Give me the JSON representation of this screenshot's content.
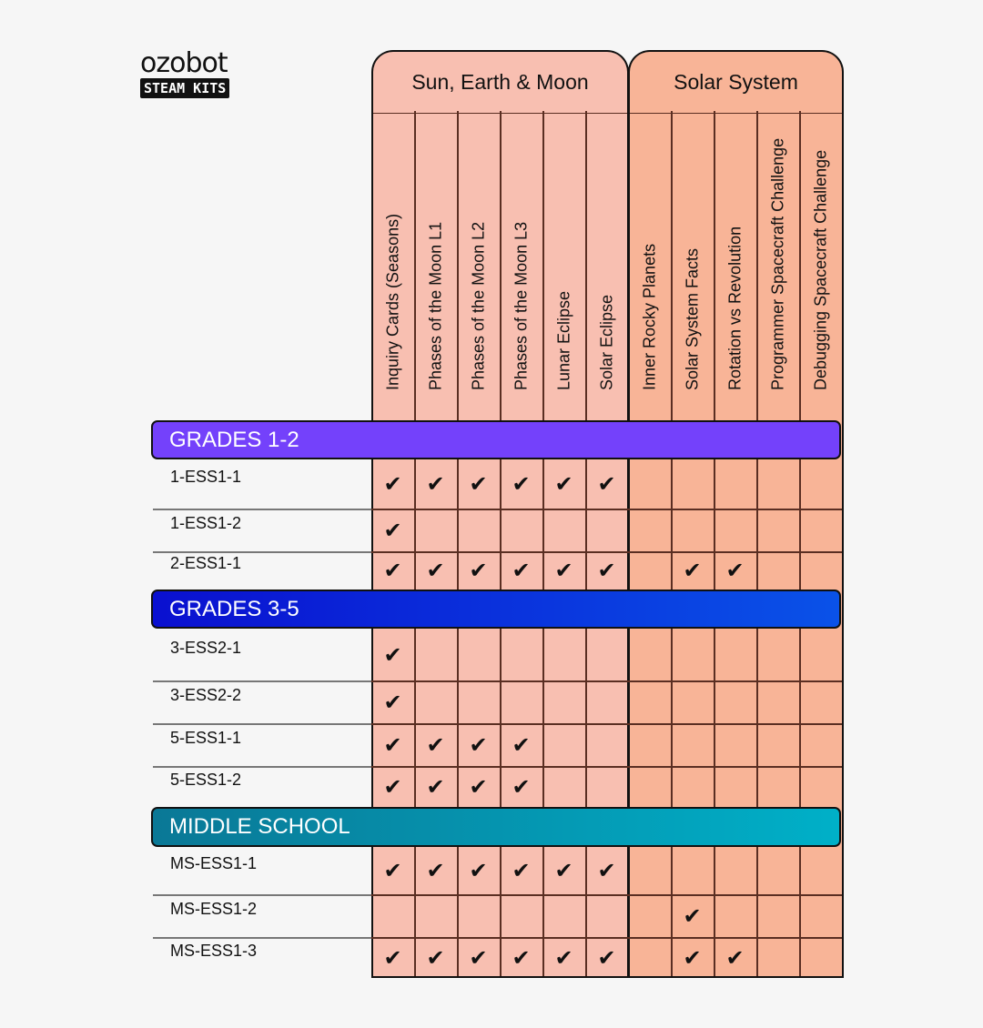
{
  "logo": {
    "wordmark": "ozobot",
    "badge": "STEAM KITS"
  },
  "colors": {
    "sun_earth_moon": "#f8bfb1",
    "solar_system": "#f8b497",
    "grades_1_2": "#7441fb",
    "grades_3_5": [
      "#0a10d0",
      "#0a52e8"
    ],
    "middle_school": [
      "#0a7896",
      "#00b0c8"
    ]
  },
  "groups": [
    {
      "title": "Sun, Earth & Moon",
      "columns": [
        "Inquiry Cards (Seasons)",
        "Phases of the Moon L1",
        "Phases of the Moon L2",
        "Phases of the Moon L3",
        "Lunar Eclipse",
        "Solar Eclipse"
      ]
    },
    {
      "title": "Solar System",
      "columns": [
        "Inner Rocky Planets",
        "Solar System Facts",
        "Rotation vs Revolution",
        "Programmer Spacecraft Challenge",
        "Debugging Spacecraft Challenge"
      ]
    }
  ],
  "check_icon": "checkmark",
  "sections": [
    {
      "title": "GRADES 1-2",
      "rows": [
        {
          "label": "1-ESS1-1",
          "checks": [
            1,
            1,
            1,
            1,
            1,
            1,
            0,
            0,
            0,
            0,
            0
          ]
        },
        {
          "label": "1-ESS1-2",
          "checks": [
            1,
            0,
            0,
            0,
            0,
            0,
            0,
            0,
            0,
            0,
            0
          ]
        },
        {
          "label": "2-ESS1-1",
          "checks": [
            1,
            1,
            1,
            1,
            1,
            1,
            0,
            1,
            1,
            0,
            0
          ]
        }
      ]
    },
    {
      "title": "GRADES 3-5",
      "rows": [
        {
          "label": "3-ESS2-1",
          "checks": [
            1,
            0,
            0,
            0,
            0,
            0,
            0,
            0,
            0,
            0,
            0
          ]
        },
        {
          "label": "3-ESS2-2",
          "checks": [
            1,
            0,
            0,
            0,
            0,
            0,
            0,
            0,
            0,
            0,
            0
          ]
        },
        {
          "label": "5-ESS1-1",
          "checks": [
            1,
            1,
            1,
            1,
            0,
            0,
            0,
            0,
            0,
            0,
            0
          ]
        },
        {
          "label": "5-ESS1-2",
          "checks": [
            1,
            1,
            1,
            1,
            0,
            0,
            0,
            0,
            0,
            0,
            0
          ]
        }
      ]
    },
    {
      "title": "MIDDLE SCHOOL",
      "rows": [
        {
          "label": "MS-ESS1-1",
          "checks": [
            1,
            1,
            1,
            1,
            1,
            1,
            0,
            0,
            0,
            0,
            0
          ]
        },
        {
          "label": "MS-ESS1-2",
          "checks": [
            0,
            0,
            0,
            0,
            0,
            0,
            0,
            1,
            0,
            0,
            0
          ]
        },
        {
          "label": "MS-ESS1-3",
          "checks": [
            1,
            1,
            1,
            1,
            1,
            1,
            0,
            1,
            1,
            0,
            0
          ]
        }
      ]
    }
  ]
}
